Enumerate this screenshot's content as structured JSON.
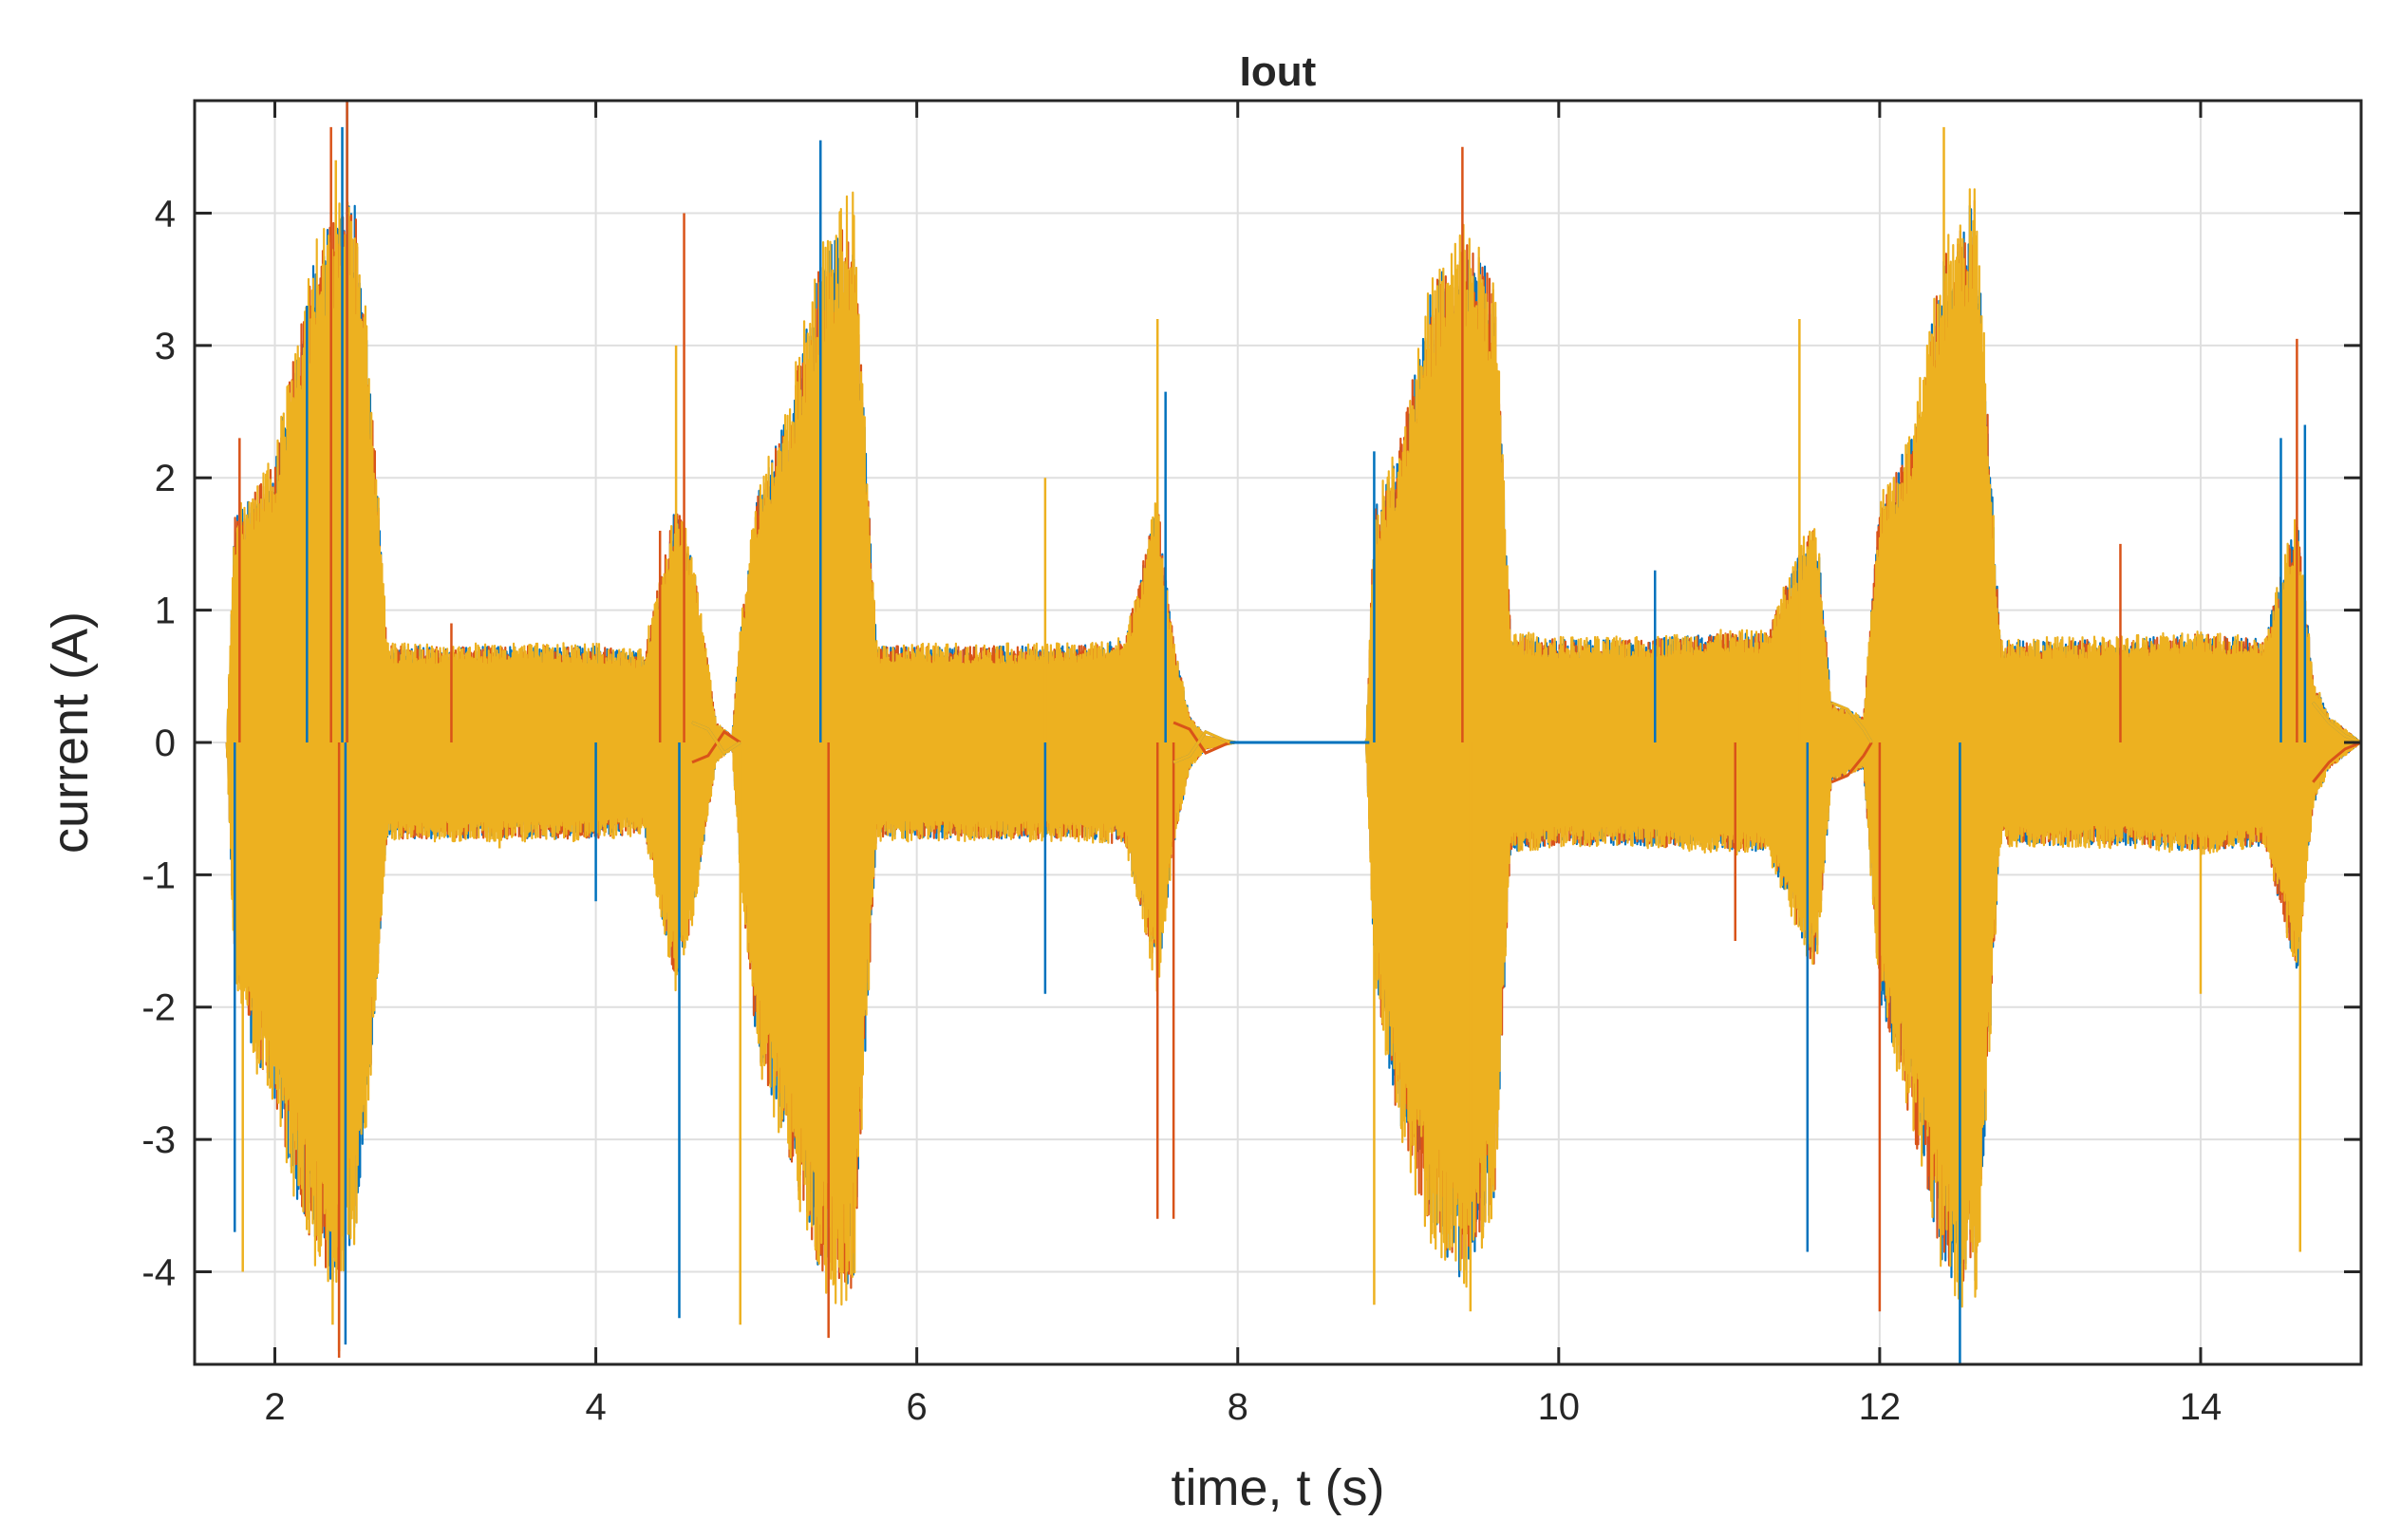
{
  "chart_data": {
    "type": "line",
    "title": "Iout",
    "xlabel": "time, t (s)",
    "ylabel": "current (A)",
    "xlim": [
      1.5,
      15
    ],
    "ylim": [
      -4.7,
      4.85
    ],
    "xticks": [
      2,
      4,
      6,
      8,
      10,
      12,
      14
    ],
    "yticks": [
      -4,
      -3,
      -2,
      -1,
      0,
      1,
      2,
      3,
      4
    ],
    "xtick_labels": [
      "2",
      "4",
      "6",
      "8",
      "10",
      "12",
      "14"
    ],
    "ytick_labels": [
      "-4",
      "-3",
      "-2",
      "-1",
      "0",
      "1",
      "2",
      "3",
      "4"
    ],
    "grid": true,
    "legend": "none",
    "series": [
      {
        "color": "#0072BD",
        "peak": 4.65,
        "trough": -4.55
      },
      {
        "color": "#D95319",
        "peak": 4.85,
        "trough": -4.65
      },
      {
        "color": "#EDB120",
        "peak": 4.4,
        "trough": -4.4
      }
    ],
    "envelope": {
      "x": [
        1.7,
        1.75,
        1.85,
        2.0,
        2.1,
        2.25,
        2.4,
        2.5,
        2.6,
        2.7,
        3.0,
        3.5,
        4.0,
        4.3,
        4.5,
        4.6,
        4.75,
        4.85,
        4.9,
        5.0,
        5.2,
        5.4,
        5.6,
        5.75,
        6.0,
        6.5,
        7.0,
        7.3,
        7.5,
        7.6,
        7.7,
        7.8,
        8.0,
        8.5,
        8.8,
        8.85,
        9.0,
        9.2,
        9.4,
        9.6,
        9.7,
        10.0,
        10.5,
        11.0,
        11.3,
        11.6,
        11.7,
        11.9,
        12.0,
        12.2,
        12.4,
        12.6,
        12.75,
        13.0,
        13.5,
        14.0,
        14.4,
        14.6,
        14.7,
        14.8,
        15.0
      ],
      "y_upper": [
        0.0,
        1.8,
        1.9,
        2.2,
        2.9,
        3.8,
        4.3,
        4.2,
        2.8,
        0.75,
        0.75,
        0.75,
        0.75,
        0.7,
        1.9,
        1.5,
        0.15,
        0.05,
        0.9,
        1.9,
        2.6,
        3.8,
        4.2,
        0.75,
        0.75,
        0.75,
        0.75,
        0.8,
        1.9,
        0.8,
        0.2,
        0.05,
        0.0,
        0.0,
        0.0,
        1.8,
        2.3,
        3.5,
        4.0,
        3.6,
        0.85,
        0.8,
        0.8,
        0.85,
        0.85,
        1.8,
        0.3,
        0.2,
        1.9,
        2.4,
        3.8,
        4.3,
        0.8,
        0.8,
        0.8,
        0.85,
        0.8,
        1.8,
        0.5,
        0.2,
        0.0
      ],
      "y_lower": [
        0.0,
        -1.8,
        -2.4,
        -2.8,
        -3.4,
        -4.0,
        -4.3,
        -3.8,
        -2.5,
        -0.75,
        -0.75,
        -0.75,
        -0.75,
        -0.7,
        -1.9,
        -1.4,
        -0.15,
        -0.05,
        -1.0,
        -2.4,
        -3.2,
        -4.2,
        -4.3,
        -0.75,
        -0.75,
        -0.75,
        -0.75,
        -0.8,
        -1.9,
        -0.8,
        -0.2,
        -0.05,
        0.0,
        0.0,
        0.0,
        -1.8,
        -3.0,
        -3.8,
        -4.2,
        -3.6,
        -0.85,
        -0.8,
        -0.8,
        -0.85,
        -0.85,
        -1.8,
        -0.3,
        -0.2,
        -2.0,
        -3.0,
        -4.1,
        -4.4,
        -0.8,
        -0.8,
        -0.8,
        -0.85,
        -0.8,
        -1.8,
        -0.5,
        -0.2,
        0.0
      ]
    },
    "spikes": [
      {
        "x": 1.75,
        "y": -3.7
      },
      {
        "x": 1.78,
        "y": 2.3
      },
      {
        "x": 1.8,
        "y": -4.0
      },
      {
        "x": 2.2,
        "y": 3.3
      },
      {
        "x": 2.35,
        "y": 4.65
      },
      {
        "x": 2.4,
        "y": -4.6
      },
      {
        "x": 2.45,
        "y": 4.85
      },
      {
        "x": 3.1,
        "y": 0.9
      },
      {
        "x": 3.4,
        "y": -0.8
      },
      {
        "x": 4.0,
        "y": -1.2
      },
      {
        "x": 4.4,
        "y": 1.6
      },
      {
        "x": 4.5,
        "y": 3.0
      },
      {
        "x": 4.52,
        "y": -4.35
      },
      {
        "x": 4.55,
        "y": 4.0
      },
      {
        "x": 4.9,
        "y": -4.4
      },
      {
        "x": 5.4,
        "y": 4.55
      },
      {
        "x": 5.45,
        "y": -4.5
      },
      {
        "x": 6.8,
        "y": 2.0
      },
      {
        "x": 6.8,
        "y": -1.9
      },
      {
        "x": 7.5,
        "y": -3.6
      },
      {
        "x": 7.5,
        "y": 3.2
      },
      {
        "x": 7.55,
        "y": 2.65
      },
      {
        "x": 7.6,
        "y": -3.6
      },
      {
        "x": 8.85,
        "y": -4.25
      },
      {
        "x": 8.85,
        "y": 2.2
      },
      {
        "x": 9.4,
        "y": 4.5
      },
      {
        "x": 9.45,
        "y": -4.3
      },
      {
        "x": 10.6,
        "y": 1.3
      },
      {
        "x": 11.1,
        "y": -1.5
      },
      {
        "x": 11.5,
        "y": 3.2
      },
      {
        "x": 11.55,
        "y": -3.85
      },
      {
        "x": 12.0,
        "y": -4.3
      },
      {
        "x": 12.4,
        "y": 4.65
      },
      {
        "x": 12.5,
        "y": -4.7
      },
      {
        "x": 13.5,
        "y": 1.5
      },
      {
        "x": 14.0,
        "y": -1.9
      },
      {
        "x": 14.5,
        "y": 2.3
      },
      {
        "x": 14.6,
        "y": 3.05
      },
      {
        "x": 14.62,
        "y": -3.85
      },
      {
        "x": 14.65,
        "y": 2.4
      }
    ],
    "tail_ringing": [
      {
        "x": [
          4.6,
          4.7,
          4.8,
          4.9
        ],
        "y": [
          0.15,
          0.1,
          -0.08,
          0.0
        ]
      },
      {
        "x": [
          7.6,
          7.7,
          7.8,
          7.95
        ],
        "y": [
          -0.15,
          -0.1,
          0.08,
          0.0
        ]
      },
      {
        "x": [
          11.7,
          11.8,
          11.9,
          11.95
        ],
        "y": [
          0.3,
          0.25,
          0.1,
          0.0
        ]
      },
      {
        "x": [
          14.7,
          14.8,
          14.9,
          15.0
        ],
        "y": [
          0.3,
          0.15,
          0.05,
          0.0
        ]
      }
    ]
  }
}
